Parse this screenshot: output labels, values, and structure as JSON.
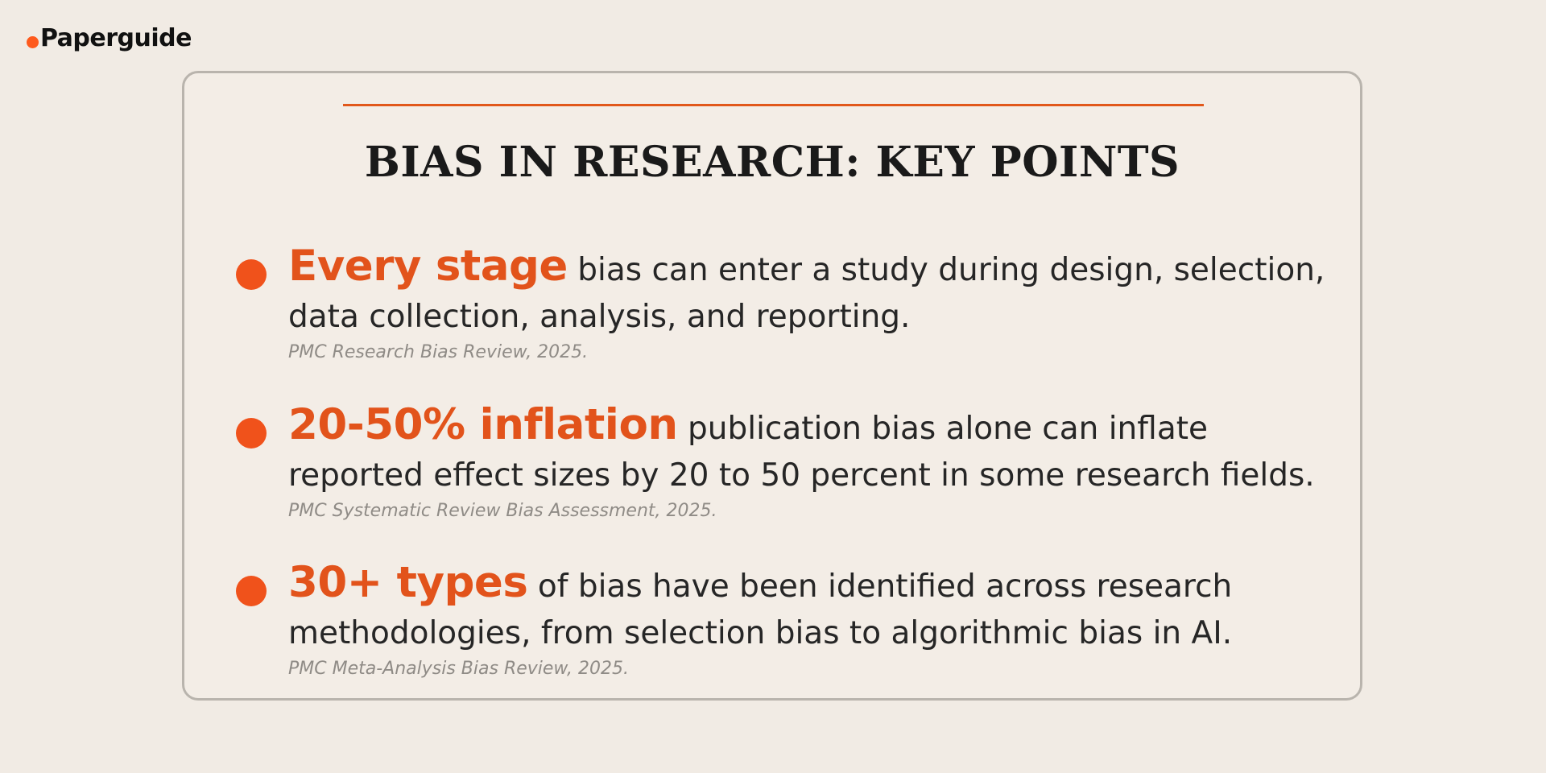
{
  "brand": {
    "name": "Paperguide",
    "accent_color": "#fe5a1d"
  },
  "card": {
    "title": "BIAS IN RESEARCH: KEY POINTS",
    "accent_color": "#e1581b",
    "points": [
      {
        "highlight": "Every stage",
        "text": "bias can enter a study during design, selection, data collection, analysis, and reporting.",
        "source": "PMC Research Bias Review, 2025."
      },
      {
        "highlight": "20-50% inflation",
        "text": "publication bias alone can inflate reported effect sizes by 20 to 50 percent in some research fields.",
        "source": "PMC Systematic Review Bias Assessment, 2025."
      },
      {
        "highlight": "30+ types",
        "text": "of bias have been identified across research methodologies, from selection bias to algorithmic bias in AI.",
        "source": "PMC Meta-Analysis Bias Review, 2025."
      }
    ]
  }
}
